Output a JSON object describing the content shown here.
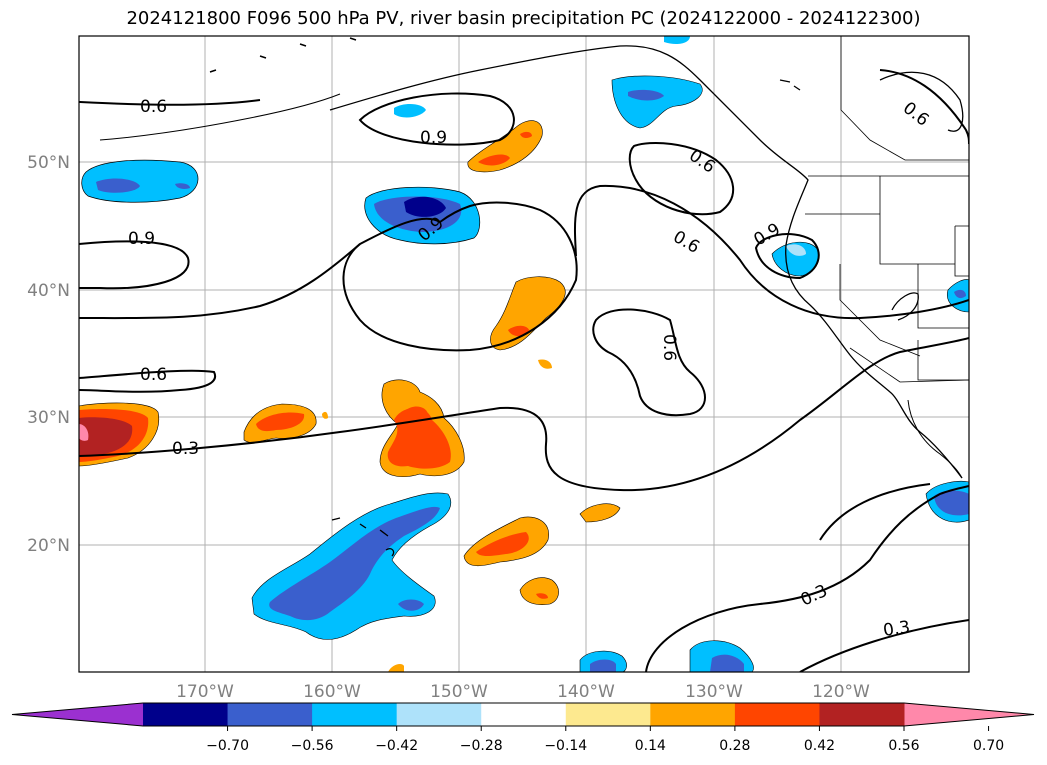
{
  "title": "2024121800 F096 500 hPa PV, river basin precipitation PC (2024122000 - 2024122300)",
  "map": {
    "lon_labels": [
      "170°W",
      "160°W",
      "150°W",
      "140°W",
      "130°W",
      "120°W"
    ],
    "lat_labels": [
      "50°N",
      "40°N",
      "30°N",
      "20°N"
    ],
    "contour_labels": [
      "0.6",
      "0.9",
      "0.9",
      "0.9",
      "0.6",
      "0.9",
      "0.6",
      "0.6",
      "0.6",
      "0.3",
      "0.3",
      "0.3",
      "0.6",
      "0.9"
    ]
  },
  "colorbar": {
    "colors": [
      "#9b30d0",
      "#00008b",
      "#3a5fcd",
      "#00bfff",
      "#aee2fa",
      "#ffffff",
      "#fde98f",
      "#ffa500",
      "#ff4500",
      "#b22222",
      "#ff88aa"
    ],
    "tick_labels": [
      "−0.70",
      "−0.56",
      "−0.42",
      "−0.28",
      "−0.14",
      "0.14",
      "0.28",
      "0.42",
      "0.56",
      "0.70"
    ]
  }
}
